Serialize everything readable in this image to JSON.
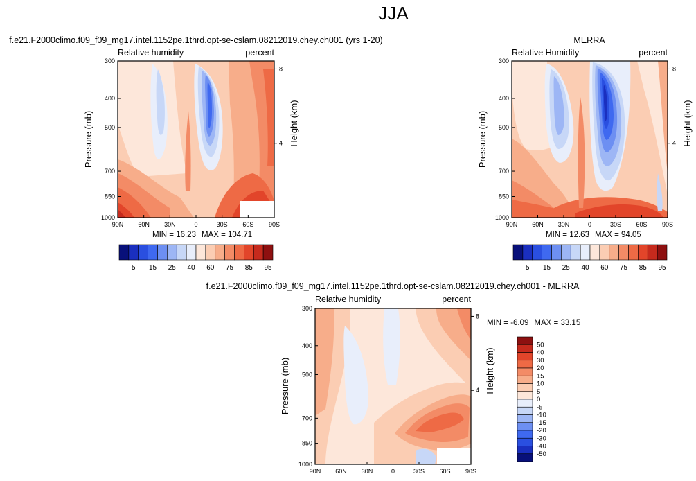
{
  "page": {
    "title": "JJA"
  },
  "colors": {
    "abs_scale": [
      "#08107a",
      "#1a2fbf",
      "#2a4fe0",
      "#3f69f0",
      "#6d8ff2",
      "#9db6f5",
      "#c7d7f7",
      "#e8eefb",
      "#fde7da",
      "#fbcdb3",
      "#f7ad8a",
      "#f38b66",
      "#ee6a45",
      "#e2452a",
      "#c62a1d",
      "#8e1010"
    ],
    "diff_scale": [
      "#08107a",
      "#1a2fbf",
      "#2a4fe0",
      "#3f69f0",
      "#6d8ff2",
      "#9db6f5",
      "#c7d7f7",
      "#e8eefb",
      "#fde7da",
      "#fbcdb3",
      "#f7ad8a",
      "#f38b66",
      "#ee6a45",
      "#e2452a",
      "#c62a1d",
      "#8e1010"
    ]
  },
  "chart_data": [
    {
      "type": "heatmap",
      "title": "f.e21.F2000climo.f09_f09_mg17.intel.1152pe.1thrd.opt-se-cslam.08212019.chey.ch001 (yrs 1-20)",
      "subtitle_left": "Relative humidity",
      "subtitle_right": "percent",
      "xlabel": "",
      "ylabel": "Pressure (mb)",
      "ylabel_right": "Height (km)",
      "x_ticks": [
        "90N",
        "60N",
        "30N",
        "0",
        "30S",
        "60S",
        "90S"
      ],
      "y_ticks": [
        "300",
        "400",
        "500",
        "700",
        "850",
        "1000"
      ],
      "y_right_ticks": [
        "8",
        "4"
      ],
      "min_label": "MIN = ",
      "min": "16.23",
      "max_label": "MAX = ",
      "max": "104.71",
      "colorbar_labels": [
        "5",
        "15",
        "25",
        "40",
        "60",
        "75",
        "85",
        "95"
      ]
    },
    {
      "type": "heatmap",
      "title": "MERRA",
      "subtitle_left": "Relative Humidity",
      "subtitle_right": "percent",
      "xlabel": "",
      "ylabel": "Pressure (mb)",
      "ylabel_right": "Height (km)",
      "x_ticks": [
        "90N",
        "60N",
        "30N",
        "0",
        "30S",
        "60S",
        "90S"
      ],
      "y_ticks": [
        "300",
        "400",
        "500",
        "700",
        "850",
        "1000"
      ],
      "y_right_ticks": [
        "8",
        "4"
      ],
      "min_label": "MIN = ",
      "min": "12.63",
      "max_label": "MAX = ",
      "max": "94.05",
      "colorbar_labels": [
        "5",
        "15",
        "25",
        "40",
        "60",
        "75",
        "85",
        "95"
      ]
    },
    {
      "type": "heatmap",
      "title": "f.e21.F2000climo.f09_f09_mg17.intel.1152pe.1thrd.opt-se-cslam.08212019.chey.ch001 - MERRA",
      "subtitle_left": "Relative humidity",
      "subtitle_right": "percent",
      "xlabel": "",
      "ylabel": "Pressure (mb)",
      "ylabel_right": "Height (km)",
      "x_ticks": [
        "90N",
        "60N",
        "30N",
        "0",
        "30S",
        "60S",
        "90S"
      ],
      "y_ticks": [
        "300",
        "400",
        "500",
        "700",
        "850",
        "1000"
      ],
      "y_right_ticks": [
        "8",
        "4"
      ],
      "min_label": "MIN = ",
      "min": "-6.09",
      "max_label": "MAX = ",
      "max": "33.15",
      "colorbar_labels": [
        "50",
        "40",
        "30",
        "20",
        "15",
        "10",
        "5",
        "0",
        "-5",
        "-10",
        "-15",
        "-20",
        "-30",
        "-40",
        "-50"
      ]
    }
  ]
}
